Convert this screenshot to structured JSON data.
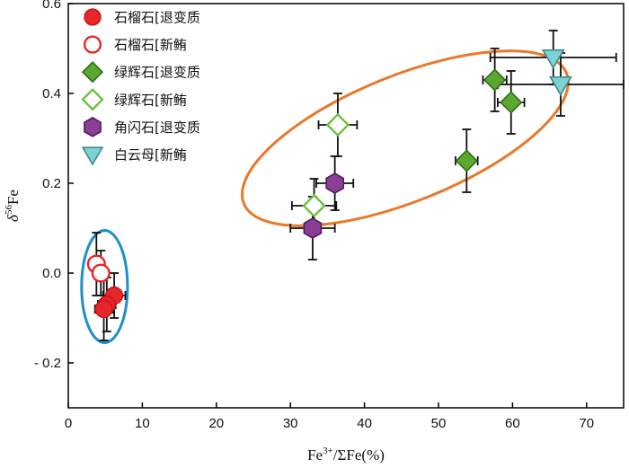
{
  "chart_data": {
    "type": "scatter",
    "xlabel": "Fe3+/ΣFe(%)",
    "ylabel": "δ56Fe",
    "xlim": [
      0,
      75
    ],
    "ylim": [
      -0.3,
      0.6
    ],
    "x_ticks": [
      "0",
      "10",
      "20",
      "30",
      "40",
      "50",
      "60",
      "70"
    ],
    "y_ticks": [
      "- 0.2",
      "0.0",
      "0.2",
      "0.4",
      "0.6"
    ],
    "legend_position": "top-left",
    "grid": false,
    "series": [
      {
        "name": "石榴石[退变质",
        "marker": "circle",
        "filled": true,
        "color": "#e8262a",
        "edge": "#c41a1e",
        "points": [
          {
            "x": 6.2,
            "y": -0.05,
            "xerr": 1.5,
            "yerr": 0.05
          },
          {
            "x": 5.2,
            "y": -0.07,
            "xerr": 1.2,
            "yerr": 0.06
          },
          {
            "x": 4.8,
            "y": -0.08,
            "xerr": 1.2,
            "yerr": 0.07
          }
        ]
      },
      {
        "name": "石榴石[新鲔",
        "marker": "circle",
        "filled": false,
        "color": "#e8262a",
        "points": [
          {
            "x": 3.8,
            "y": 0.02,
            "xerr": 1.0,
            "yerr": 0.07
          },
          {
            "x": 4.4,
            "y": 0.0,
            "xerr": 1.0,
            "yerr": 0.05
          }
        ]
      },
      {
        "name": "绿辉石[退变质",
        "marker": "diamond",
        "filled": true,
        "color": "#5aa832",
        "edge": "#2e6b16",
        "points": [
          {
            "x": 53.8,
            "y": 0.25,
            "xerr": 1.5,
            "yerr": 0.07
          },
          {
            "x": 57.6,
            "y": 0.43,
            "xerr": 1.6,
            "yerr": 0.07
          },
          {
            "x": 59.8,
            "y": 0.38,
            "xerr": 1.8,
            "yerr": 0.07
          }
        ]
      },
      {
        "name": "绿辉石[新鲔",
        "marker": "diamond",
        "filled": false,
        "color": "#6cc040",
        "points": [
          {
            "x": 36.4,
            "y": 0.33,
            "xerr": 2.6,
            "yerr": 0.07
          },
          {
            "x": 33.2,
            "y": 0.15,
            "xerr": 3.0,
            "yerr": 0.06
          }
        ]
      },
      {
        "name": "角闪石[退变质",
        "marker": "hexagon",
        "filled": true,
        "color": "#8b3e96",
        "edge": "#4e1d57",
        "points": [
          {
            "x": 36.0,
            "y": 0.2,
            "xerr": 2.5,
            "yerr": 0.06
          },
          {
            "x": 33.0,
            "y": 0.1,
            "xerr": 3.0,
            "yerr": 0.07
          }
        ]
      },
      {
        "name": "白云母[新鲔",
        "marker": "triangle-down",
        "filled": true,
        "color": "#7fd1d4",
        "edge": "#3a8a90",
        "points": [
          {
            "x": 65.5,
            "y": 0.48,
            "xerr": 8.5,
            "yerr": 0.06
          },
          {
            "x": 66.5,
            "y": 0.42,
            "xerr": 8.5,
            "yerr": 0.07
          }
        ]
      }
    ],
    "annotations": [
      {
        "shape": "ellipse",
        "color": "#e8782a",
        "cx": 45.5,
        "cy": 0.3,
        "rx": 23.5,
        "ry": 0.14,
        "rotation_deg": -22
      },
      {
        "shape": "ellipse",
        "color": "#1e8fc8",
        "cx": 4.9,
        "cy": -0.03,
        "rx": 3.1,
        "ry": 0.125,
        "rotation_deg": 0
      }
    ]
  }
}
